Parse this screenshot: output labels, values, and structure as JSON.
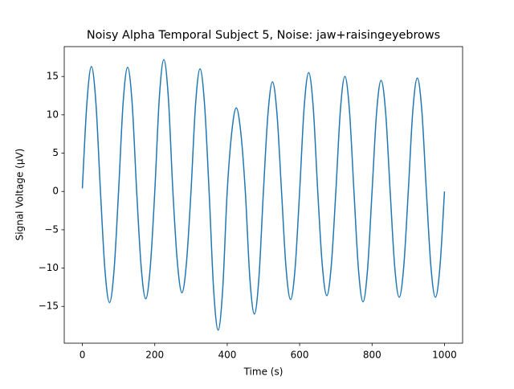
{
  "chart_data": {
    "type": "line",
    "title": "Noisy Alpha Temporal Subject 5, Noise: jaw+raisingeyebrows",
    "x_label": "Time (s)",
    "y_label": "Signal Voltage (μV)",
    "x": [
      0,
      12.5,
      25,
      37.5,
      50,
      62.5,
      75,
      87.5,
      100,
      112.5,
      125,
      137.5,
      150,
      162.5,
      175,
      187.5,
      200,
      212.5,
      225,
      237.5,
      250,
      262.5,
      275,
      287.5,
      300,
      312.5,
      325,
      337.5,
      350,
      362.5,
      375,
      387.5,
      400,
      412.5,
      425,
      437.5,
      450,
      462.5,
      475,
      487.5,
      500,
      512.5,
      525,
      537.5,
      550,
      562.5,
      575,
      587.5,
      600,
      612.5,
      625,
      637.5,
      650,
      662.5,
      675,
      687.5,
      700,
      712.5,
      725,
      737.5,
      750,
      762.5,
      775,
      787.5,
      800,
      812.5,
      825,
      837.5,
      850,
      862.5,
      875,
      887.5,
      900,
      912.5,
      925,
      937.5,
      950,
      962.5,
      975,
      987.5,
      1000
    ],
    "series": [
      {
        "color": "#1f77b4",
        "values": [
          0.4,
          11.5,
          16.3,
          11.5,
          0,
          -10.3,
          -14.5,
          -10.3,
          0,
          11.5,
          16.2,
          11.5,
          0,
          -9.9,
          -14.0,
          -9.9,
          0,
          12.2,
          17.2,
          12.2,
          0,
          -9.3,
          -13.2,
          -9.3,
          0,
          11.3,
          16.0,
          11.3,
          0,
          -12.8,
          -18.1,
          -12.8,
          0,
          7.7,
          10.9,
          7.7,
          0,
          -11.3,
          -16.0,
          -11.3,
          0,
          10.1,
          14.3,
          10.1,
          0,
          -10.0,
          -14.1,
          -10.0,
          0,
          11.0,
          15.5,
          11.0,
          0,
          -9.6,
          -13.6,
          -9.6,
          0,
          10.6,
          15.0,
          10.6,
          0,
          -10.2,
          -14.4,
          -10.2,
          0,
          10.3,
          14.5,
          10.3,
          0,
          -9.8,
          -13.8,
          -9.8,
          0,
          10.5,
          14.8,
          10.5,
          0,
          -9.8,
          -13.8,
          -9.8,
          0
        ]
      }
    ],
    "xlim": [
      -50,
      1050
    ],
    "ylim": [
      -19.8,
      18.9
    ],
    "xticks": [
      0,
      200,
      400,
      600,
      800,
      1000
    ],
    "yticks": [
      {
        "value": -15,
        "label": "−15"
      },
      {
        "value": -10,
        "label": "−10"
      },
      {
        "value": -5,
        "label": "−5"
      },
      0,
      5,
      10,
      15
    ]
  }
}
